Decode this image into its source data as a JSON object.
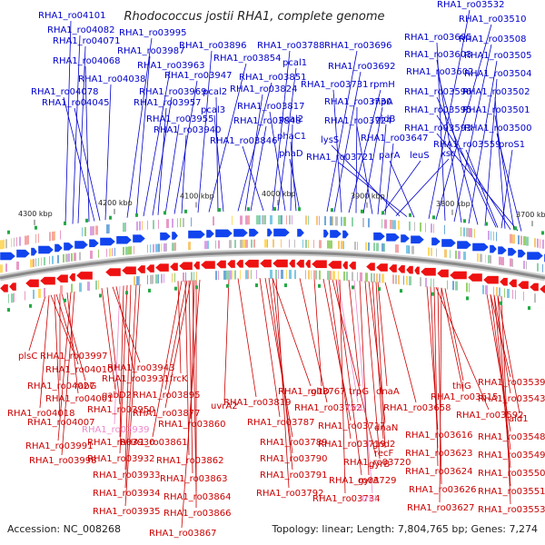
{
  "title": "Rhodococcus jostii RHA1, complete genome",
  "footer": {
    "accession": "Accession: NC_008268",
    "summary": "Topology: linear; Length: 7,804,765 bp; Genes: 7,274"
  },
  "ticks": [
    "4300 kbp",
    "4200 kbp",
    "4100 kbp",
    "4000 kbp",
    "3900 kbp",
    "3800 kbp",
    "3700 kbp"
  ],
  "colors": {
    "top_labels": "#0000cc",
    "bottom_labels": "#cc0000",
    "rna_labels": "#ee88cc",
    "forward_strand": "#1144ee",
    "reverse_strand": "#ee1111",
    "backbone": "#888888"
  },
  "top_labels": [
    "RHA1_ro04101",
    "RHA1_ro04082",
    "RHA1_ro04071",
    "RHA1_ro04068",
    "RHA1_ro04078",
    "RHA1_ro04045",
    "RHA1_ro04038",
    "RHA1_ro03995",
    "RHA1_ro03987",
    "RHA1_ro03963",
    "RHA1_ro03969",
    "RHA1_ro03957",
    "RHA1_ro03955",
    "RHA1_ro03947",
    "RHA1_ro03940",
    "RHA1_ro03896",
    "RHA1_ro03854",
    "pcal2",
    "pcal3",
    "RHA1_ro03851",
    "RHA1_ro03824",
    "RHA1_ro03848",
    "RHA1_ro03846",
    "RHA1_ro03788",
    "pcal1",
    "RHA1_ro03817",
    "pcal2",
    "phaC1",
    "phaD",
    "RHA1_ro03696",
    "RHA1_ro03692",
    "RHA1_ro03731",
    "rpmH",
    "RHA1_ro03730",
    "rnpA",
    "RHA1_ro03724",
    "gidB",
    "RHA1_ro03647",
    "lysS",
    "RHA1_ro03721",
    "parA",
    "RHA1_ro03532",
    "RHA1_ro03510",
    "RHA1_ro03605",
    "RHA1_ro03508",
    "RHA1_ro03603",
    "RHA1_ro03505",
    "RHA1_ro03602",
    "RHA1_ro03504",
    "RHA1_ro03596",
    "RHA1_ro03502",
    "RHA1_ro03595",
    "RHA1_ro03501",
    "RHA1_ro03593",
    "RHA1_ro03500",
    "RHA1_ro03559",
    "proS1",
    "leuS",
    "xsc"
  ],
  "bottom_labels": [
    "plsC",
    "RHA1_ro03997",
    "RHA1_ro04010",
    "rabG",
    "RHA1_ro04027",
    "RHA1_ro04001",
    "RHA1_ro04018",
    "RHA1_ro04007",
    "RHA1_ro03991",
    "RHA1_ro03998",
    "RHA1_ro03943",
    "RHA1_ro03931",
    "gabD2",
    "RHA1_ro03950",
    "RHA1_ro03939",
    "RHA1_ro03930",
    "RHA1_ro03932",
    "RHA1_ro03933",
    "RHA1_ro03934",
    "RHA1_ro03935",
    "frcK",
    "RHA1_ro03895",
    "RHA1_ro03877",
    "RHA1_ro03860",
    "RHA1_ro03861",
    "RHA1_ro03862",
    "RHA1_ro03863",
    "RHA1_ro03864",
    "RHA1_ro03866",
    "RHA1_ro03867",
    "uvrA2",
    "RHA1_ro03819",
    "RHA1_ro03767",
    "RHA1_ro03787",
    "RHA1_ro03789",
    "RHA1_ro03790",
    "RHA1_ro03791",
    "RHA1_ro03792",
    "RHA1_ro03752",
    "gltD",
    "trnL",
    "trpG",
    "RHA1_ro03717",
    "RHA1_ro03719",
    "RHA1_ro03720",
    "RHA1_ro03729",
    "RHA1_ro03734",
    "trnI",
    "dnaA",
    "RHA1_ro03658",
    "dnaN",
    "gnd2",
    "recF",
    "gyrB",
    "gyrA",
    "thiG",
    "RHA1_ro03615",
    "RHA1_ro03592",
    "RHA1_ro03616",
    "RHA1_ro03623",
    "RHA1_ro03624",
    "RHA1_ro03626",
    "RHA1_ro03627",
    "RHA1_ro03539",
    "RHA1_ro03543",
    "ald1",
    "RHA1_ro03548",
    "RHA1_ro03549",
    "RHA1_ro03550",
    "RHA1_ro03551",
    "RHA1_ro03553"
  ]
}
